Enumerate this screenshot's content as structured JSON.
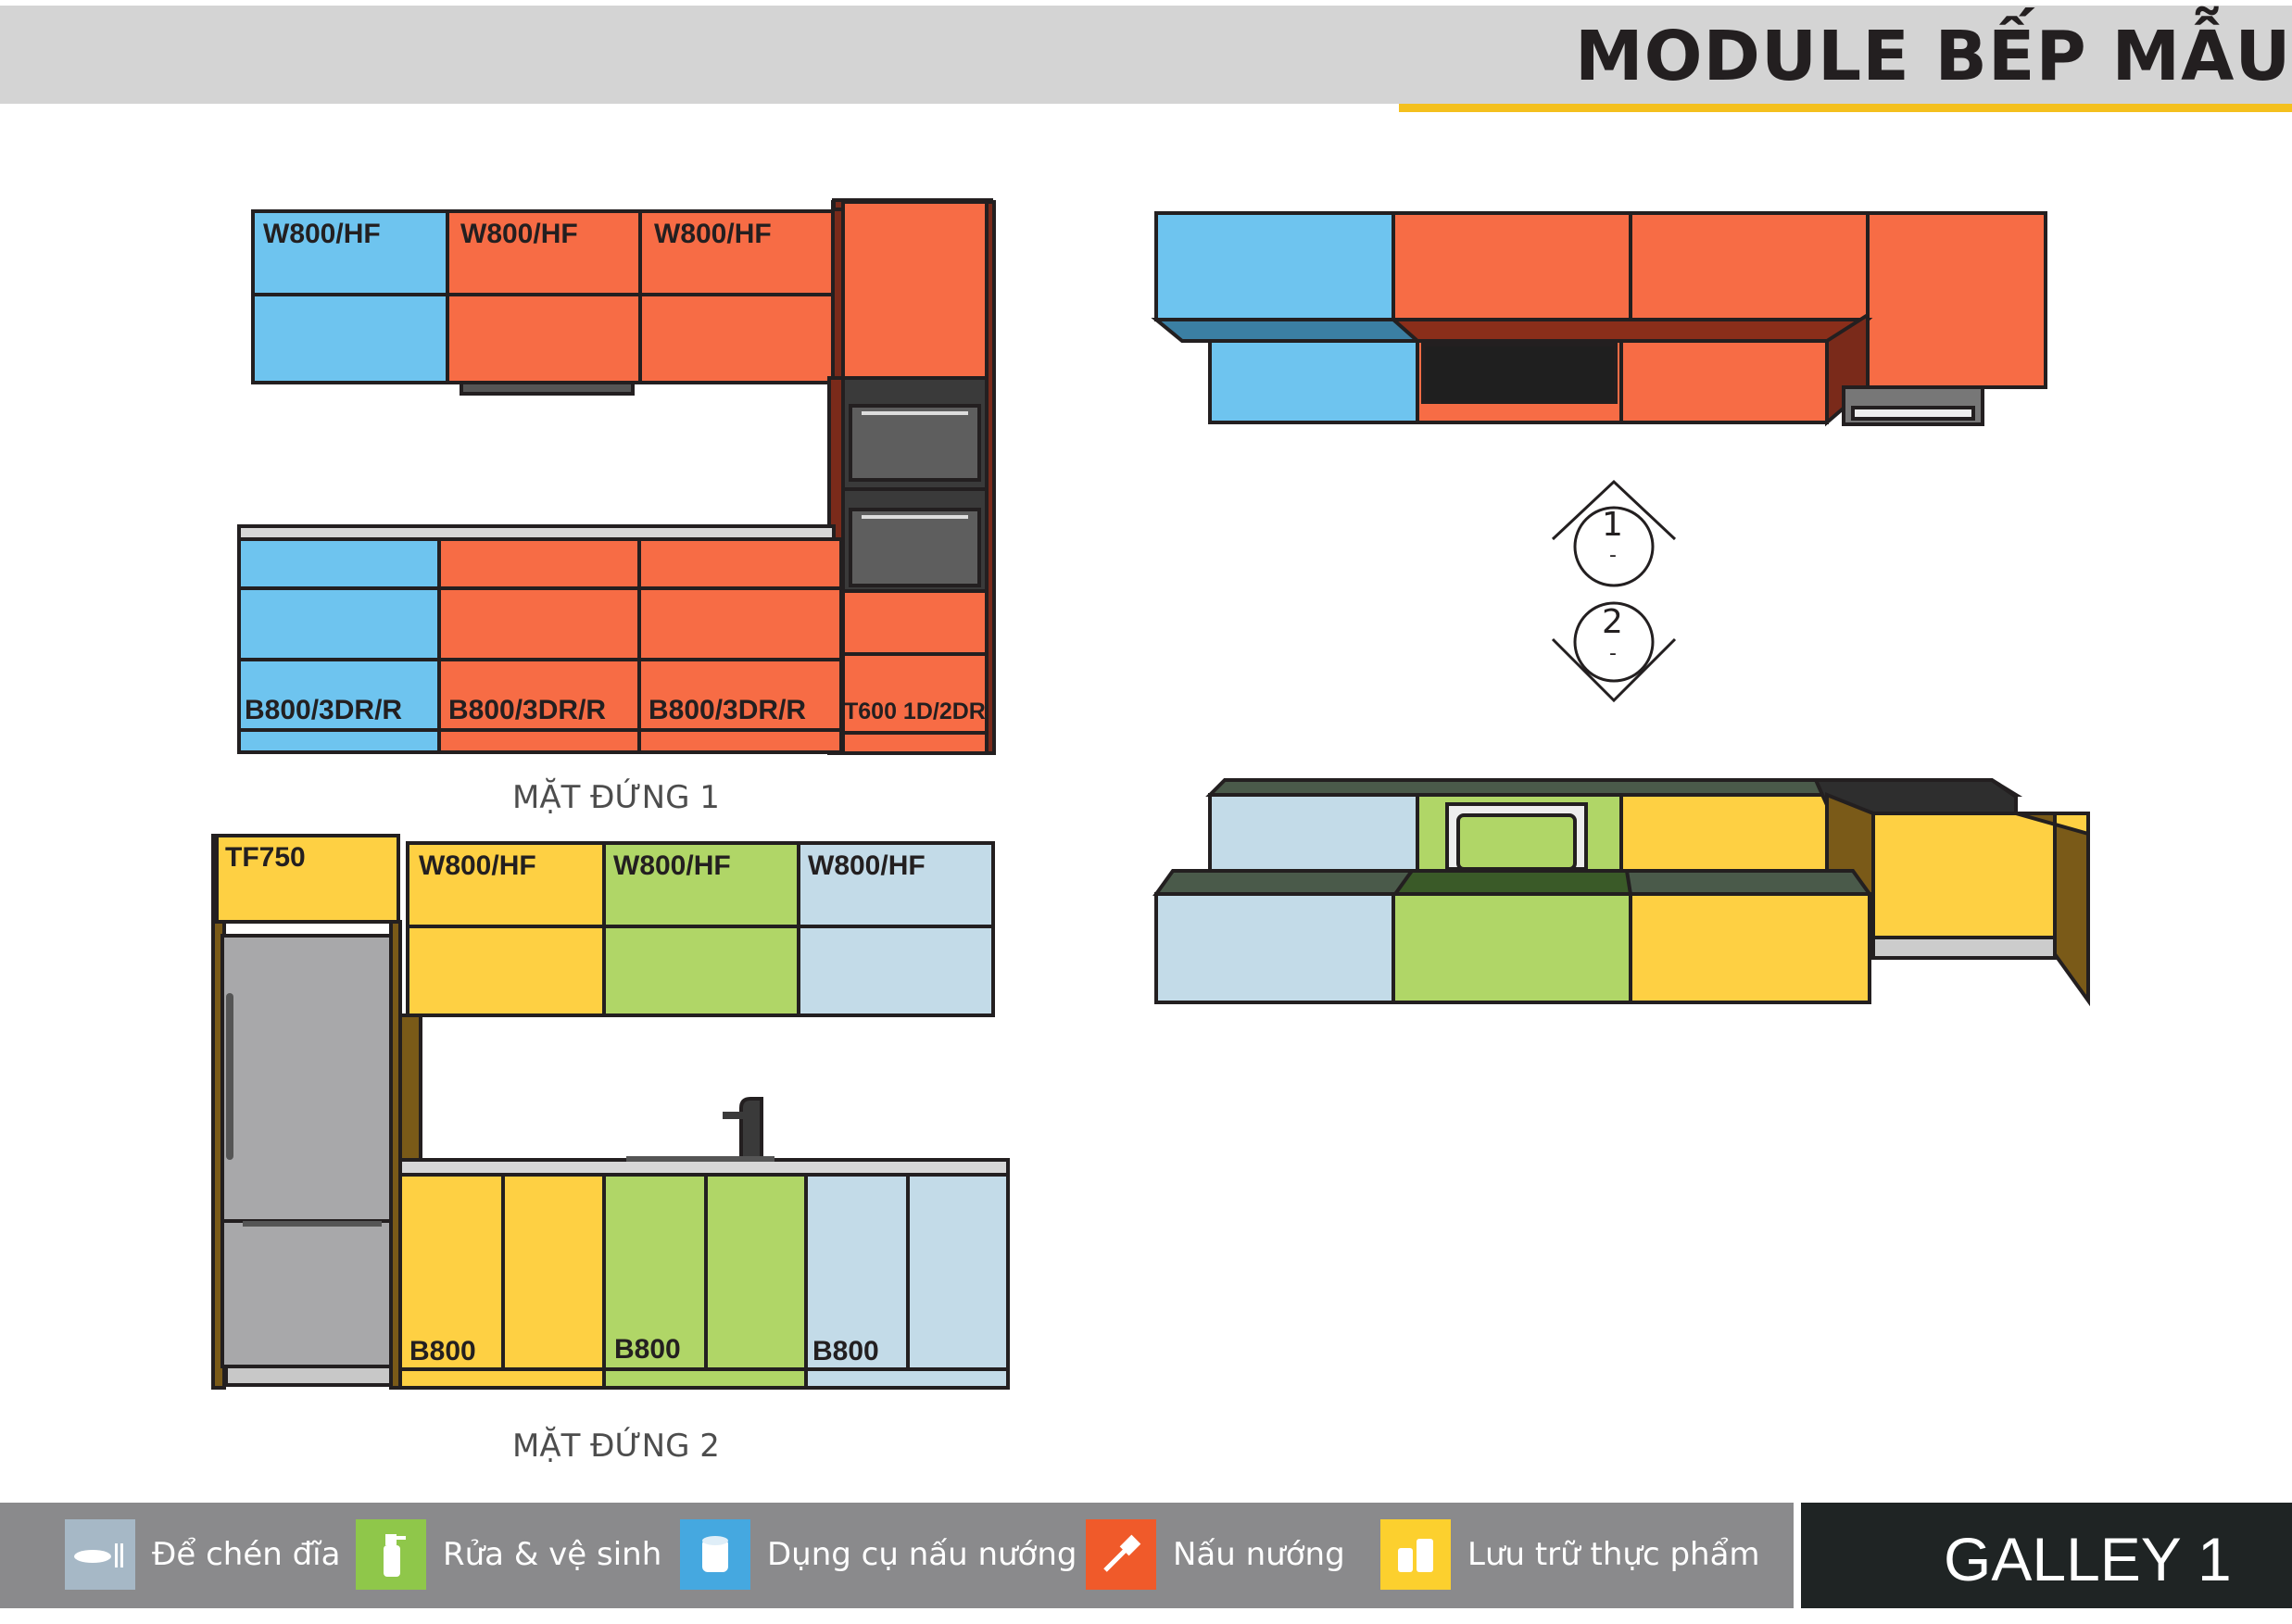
{
  "header": {
    "title": "MODULE BẾP MẪU"
  },
  "colors": {
    "blue": "#6ec4ef",
    "orange": "#f76c45",
    "yellow": "#fed043",
    "green": "#b0d667",
    "lightblue": "#c3dbe8",
    "dark": "#231f20"
  },
  "elevation1": {
    "title": "MẶT ĐỨNG 1",
    "upper_labels": [
      "W800/HF",
      "W800/HF",
      "W800/HF"
    ],
    "base_labels": [
      "B800/3DR/R",
      "B800/3DR/R",
      "B800/3DR/R",
      "T600 1D/2DR"
    ]
  },
  "elevation2": {
    "title": "MẶT ĐỨNG 2",
    "tall_label": "TF750",
    "upper_labels": [
      "W800/HF",
      "W800/HF",
      "W800/HF"
    ],
    "base_labels": [
      "B800",
      "B800",
      "B800"
    ]
  },
  "section_markers": [
    "1",
    "2"
  ],
  "section_marker_sub": "-",
  "legend": [
    {
      "label": "Để chén đĩa",
      "icon": "plate-icon",
      "color": "#a6b8c6"
    },
    {
      "label": "Rửa & vệ sinh",
      "icon": "spray-bottle-icon",
      "color": "#8fc74a"
    },
    {
      "label": "Dụng cụ nấu nướng",
      "icon": "pot-icon",
      "color": "#45a8e0"
    },
    {
      "label": "Nấu nướng",
      "icon": "spatula-icon",
      "color": "#f05a2a"
    },
    {
      "label": "Lưu trữ thực phẩm",
      "icon": "jars-icon",
      "color": "#fcd02e"
    }
  ],
  "footer": {
    "galley": "GALLEY 1"
  }
}
